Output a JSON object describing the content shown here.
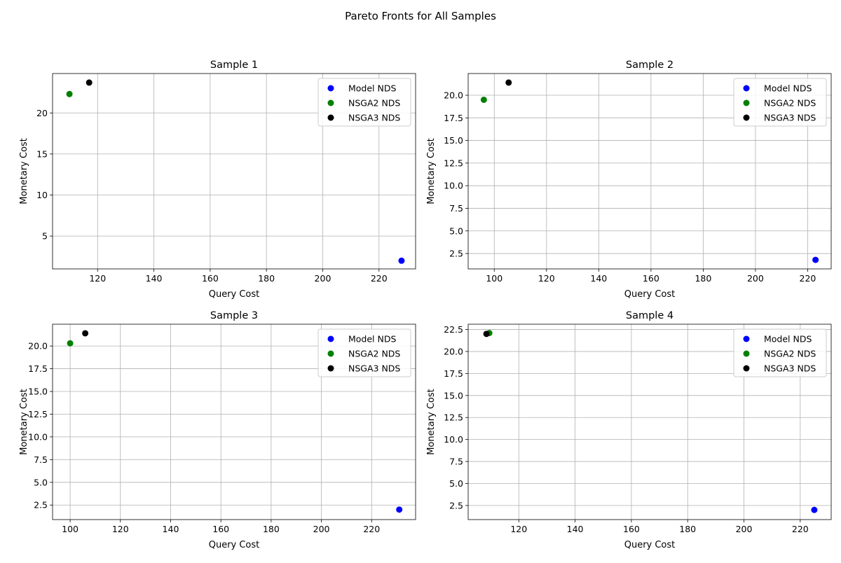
{
  "figure": {
    "suptitle": "Pareto Fronts for All Samples"
  },
  "legend_entries": [
    {
      "label": "Model NDS",
      "color": "#0000ff"
    },
    {
      "label": "NSGA2 NDS",
      "color": "#008000"
    },
    {
      "label": "NSGA3 NDS",
      "color": "#000000"
    }
  ],
  "chart_data": [
    {
      "type": "scatter",
      "title": "Sample 1",
      "xlabel": "Query Cost",
      "ylabel": "Monetary Cost",
      "xlim": [
        104,
        233
      ],
      "ylim": [
        1.0,
        24.8
      ],
      "xticks": [
        120,
        140,
        160,
        180,
        200,
        220
      ],
      "yticks": [
        5,
        10,
        15,
        20
      ],
      "grid": true,
      "legend_position": "upper right",
      "series": [
        {
          "name": "Model NDS",
          "color": "#0000ff",
          "points": [
            [
              228,
              2.0
            ]
          ]
        },
        {
          "name": "NSGA2 NDS",
          "color": "#008000",
          "points": [
            [
              110,
              22.3
            ]
          ]
        },
        {
          "name": "NSGA3 NDS",
          "color": "#000000",
          "points": [
            [
              117,
              23.7
            ]
          ]
        }
      ]
    },
    {
      "type": "scatter",
      "title": "Sample 2",
      "xlabel": "Query Cost",
      "ylabel": "Monetary Cost",
      "xlim": [
        90,
        229
      ],
      "ylim": [
        0.8,
        22.4
      ],
      "xticks": [
        100,
        120,
        140,
        160,
        180,
        200,
        220
      ],
      "yticks": [
        2.5,
        5.0,
        7.5,
        10.0,
        12.5,
        15.0,
        17.5,
        20.0
      ],
      "grid": true,
      "legend_position": "upper right",
      "series": [
        {
          "name": "Model NDS",
          "color": "#0000ff",
          "points": [
            [
              223,
              1.8
            ]
          ]
        },
        {
          "name": "NSGA2 NDS",
          "color": "#008000",
          "points": [
            [
              96,
              19.5
            ]
          ]
        },
        {
          "name": "NSGA3 NDS",
          "color": "#000000",
          "points": [
            [
              105.5,
              21.4
            ]
          ]
        }
      ]
    },
    {
      "type": "scatter",
      "title": "Sample 3",
      "xlabel": "Query Cost",
      "ylabel": "Monetary Cost",
      "xlim": [
        93,
        237.5
      ],
      "ylim": [
        0.9,
        22.4
      ],
      "xticks": [
        100,
        120,
        140,
        160,
        180,
        200,
        220
      ],
      "yticks": [
        2.5,
        5.0,
        7.5,
        10.0,
        12.5,
        15.0,
        17.5,
        20.0
      ],
      "grid": true,
      "legend_position": "upper right",
      "series": [
        {
          "name": "Model NDS",
          "color": "#0000ff",
          "points": [
            [
              231,
              2.0
            ]
          ]
        },
        {
          "name": "NSGA2 NDS",
          "color": "#008000",
          "points": [
            [
              100,
              20.3
            ]
          ]
        },
        {
          "name": "NSGA3 NDS",
          "color": "#000000",
          "points": [
            [
              106,
              21.4
            ]
          ]
        }
      ]
    },
    {
      "type": "scatter",
      "title": "Sample 4",
      "xlabel": "Query Cost",
      "ylabel": "Monetary Cost",
      "xlim": [
        102,
        231
      ],
      "ylim": [
        0.9,
        23.1
      ],
      "xticks": [
        120,
        140,
        160,
        180,
        200,
        220
      ],
      "yticks": [
        2.5,
        5.0,
        7.5,
        10.0,
        12.5,
        15.0,
        17.5,
        20.0,
        22.5
      ],
      "grid": true,
      "legend_position": "upper right",
      "series": [
        {
          "name": "Model NDS",
          "color": "#0000ff",
          "points": [
            [
              225,
              2.0
            ]
          ]
        },
        {
          "name": "NSGA2 NDS",
          "color": "#008000",
          "points": [
            [
              109.5,
              22.1
            ]
          ]
        },
        {
          "name": "NSGA3 NDS",
          "color": "#000000",
          "points": [
            [
              108.5,
              22.0
            ]
          ]
        }
      ]
    }
  ]
}
